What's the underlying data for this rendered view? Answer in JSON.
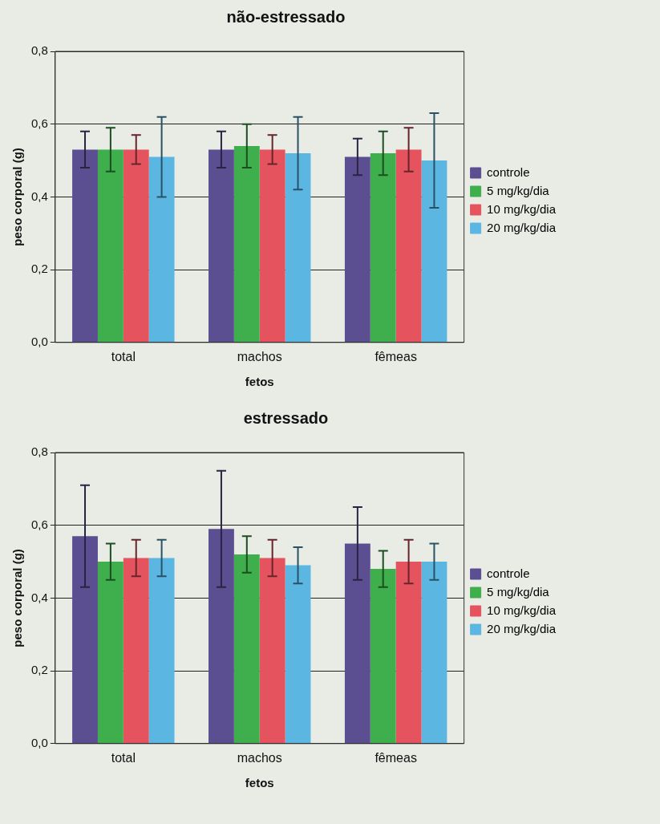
{
  "chart_data": [
    {
      "type": "bar",
      "title": "não-estressado",
      "xlabel": "fetos",
      "ylabel": "peso corporal (g)",
      "categories": [
        "total",
        "machos",
        "fêmeas"
      ],
      "series": [
        {
          "name": "controle",
          "color": "#5b4f92",
          "values": [
            0.53,
            0.53,
            0.51
          ],
          "errors": [
            0.05,
            0.05,
            0.05
          ]
        },
        {
          "name": "5 mg/kg/dia",
          "color": "#3fae4c",
          "values": [
            0.53,
            0.54,
            0.52
          ],
          "errors": [
            0.06,
            0.06,
            0.06
          ]
        },
        {
          "name": "10 mg/kg/dia",
          "color": "#e5535f",
          "values": [
            0.53,
            0.53,
            0.53
          ],
          "errors": [
            0.04,
            0.04,
            0.06
          ]
        },
        {
          "name": "20 mg/kg/dia",
          "color": "#5bb6e2",
          "values": [
            0.51,
            0.52,
            0.5
          ],
          "errors": [
            0.11,
            0.1,
            0.13
          ]
        }
      ],
      "ylim": [
        0,
        0.8
      ],
      "yticks": [
        {
          "value": 0,
          "label": "0,0"
        },
        {
          "value": 0.2,
          "label": "0,2"
        },
        {
          "value": 0.4,
          "label": "0,4"
        },
        {
          "value": 0.6,
          "label": "0,6"
        },
        {
          "value": 0.8,
          "label": "0,8"
        }
      ],
      "grid": "y",
      "legend": "right"
    },
    {
      "type": "bar",
      "title": "estressado",
      "xlabel": "fetos",
      "ylabel": "peso corporal (g)",
      "categories": [
        "total",
        "machos",
        "fêmeas"
      ],
      "series": [
        {
          "name": "controle",
          "color": "#5b4f92",
          "values": [
            0.57,
            0.59,
            0.55
          ],
          "errors": [
            0.14,
            0.16,
            0.1
          ]
        },
        {
          "name": "5 mg/kg/dia",
          "color": "#3fae4c",
          "values": [
            0.5,
            0.52,
            0.48
          ],
          "errors": [
            0.05,
            0.05,
            0.05
          ]
        },
        {
          "name": "10 mg/kg/dia",
          "color": "#e5535f",
          "values": [
            0.51,
            0.51,
            0.5
          ],
          "errors": [
            0.05,
            0.05,
            0.06
          ]
        },
        {
          "name": "20 mg/kg/dia",
          "color": "#5bb6e2",
          "values": [
            0.51,
            0.49,
            0.5
          ],
          "errors": [
            0.05,
            0.05,
            0.05
          ]
        }
      ],
      "ylim": [
        0,
        0.8
      ],
      "yticks": [
        {
          "value": 0,
          "label": "0,0"
        },
        {
          "value": 0.2,
          "label": "0,2"
        },
        {
          "value": 0.4,
          "label": "0,4"
        },
        {
          "value": 0.6,
          "label": "0,6"
        },
        {
          "value": 0.8,
          "label": "0,8"
        }
      ],
      "grid": "y",
      "legend": "right"
    }
  ]
}
